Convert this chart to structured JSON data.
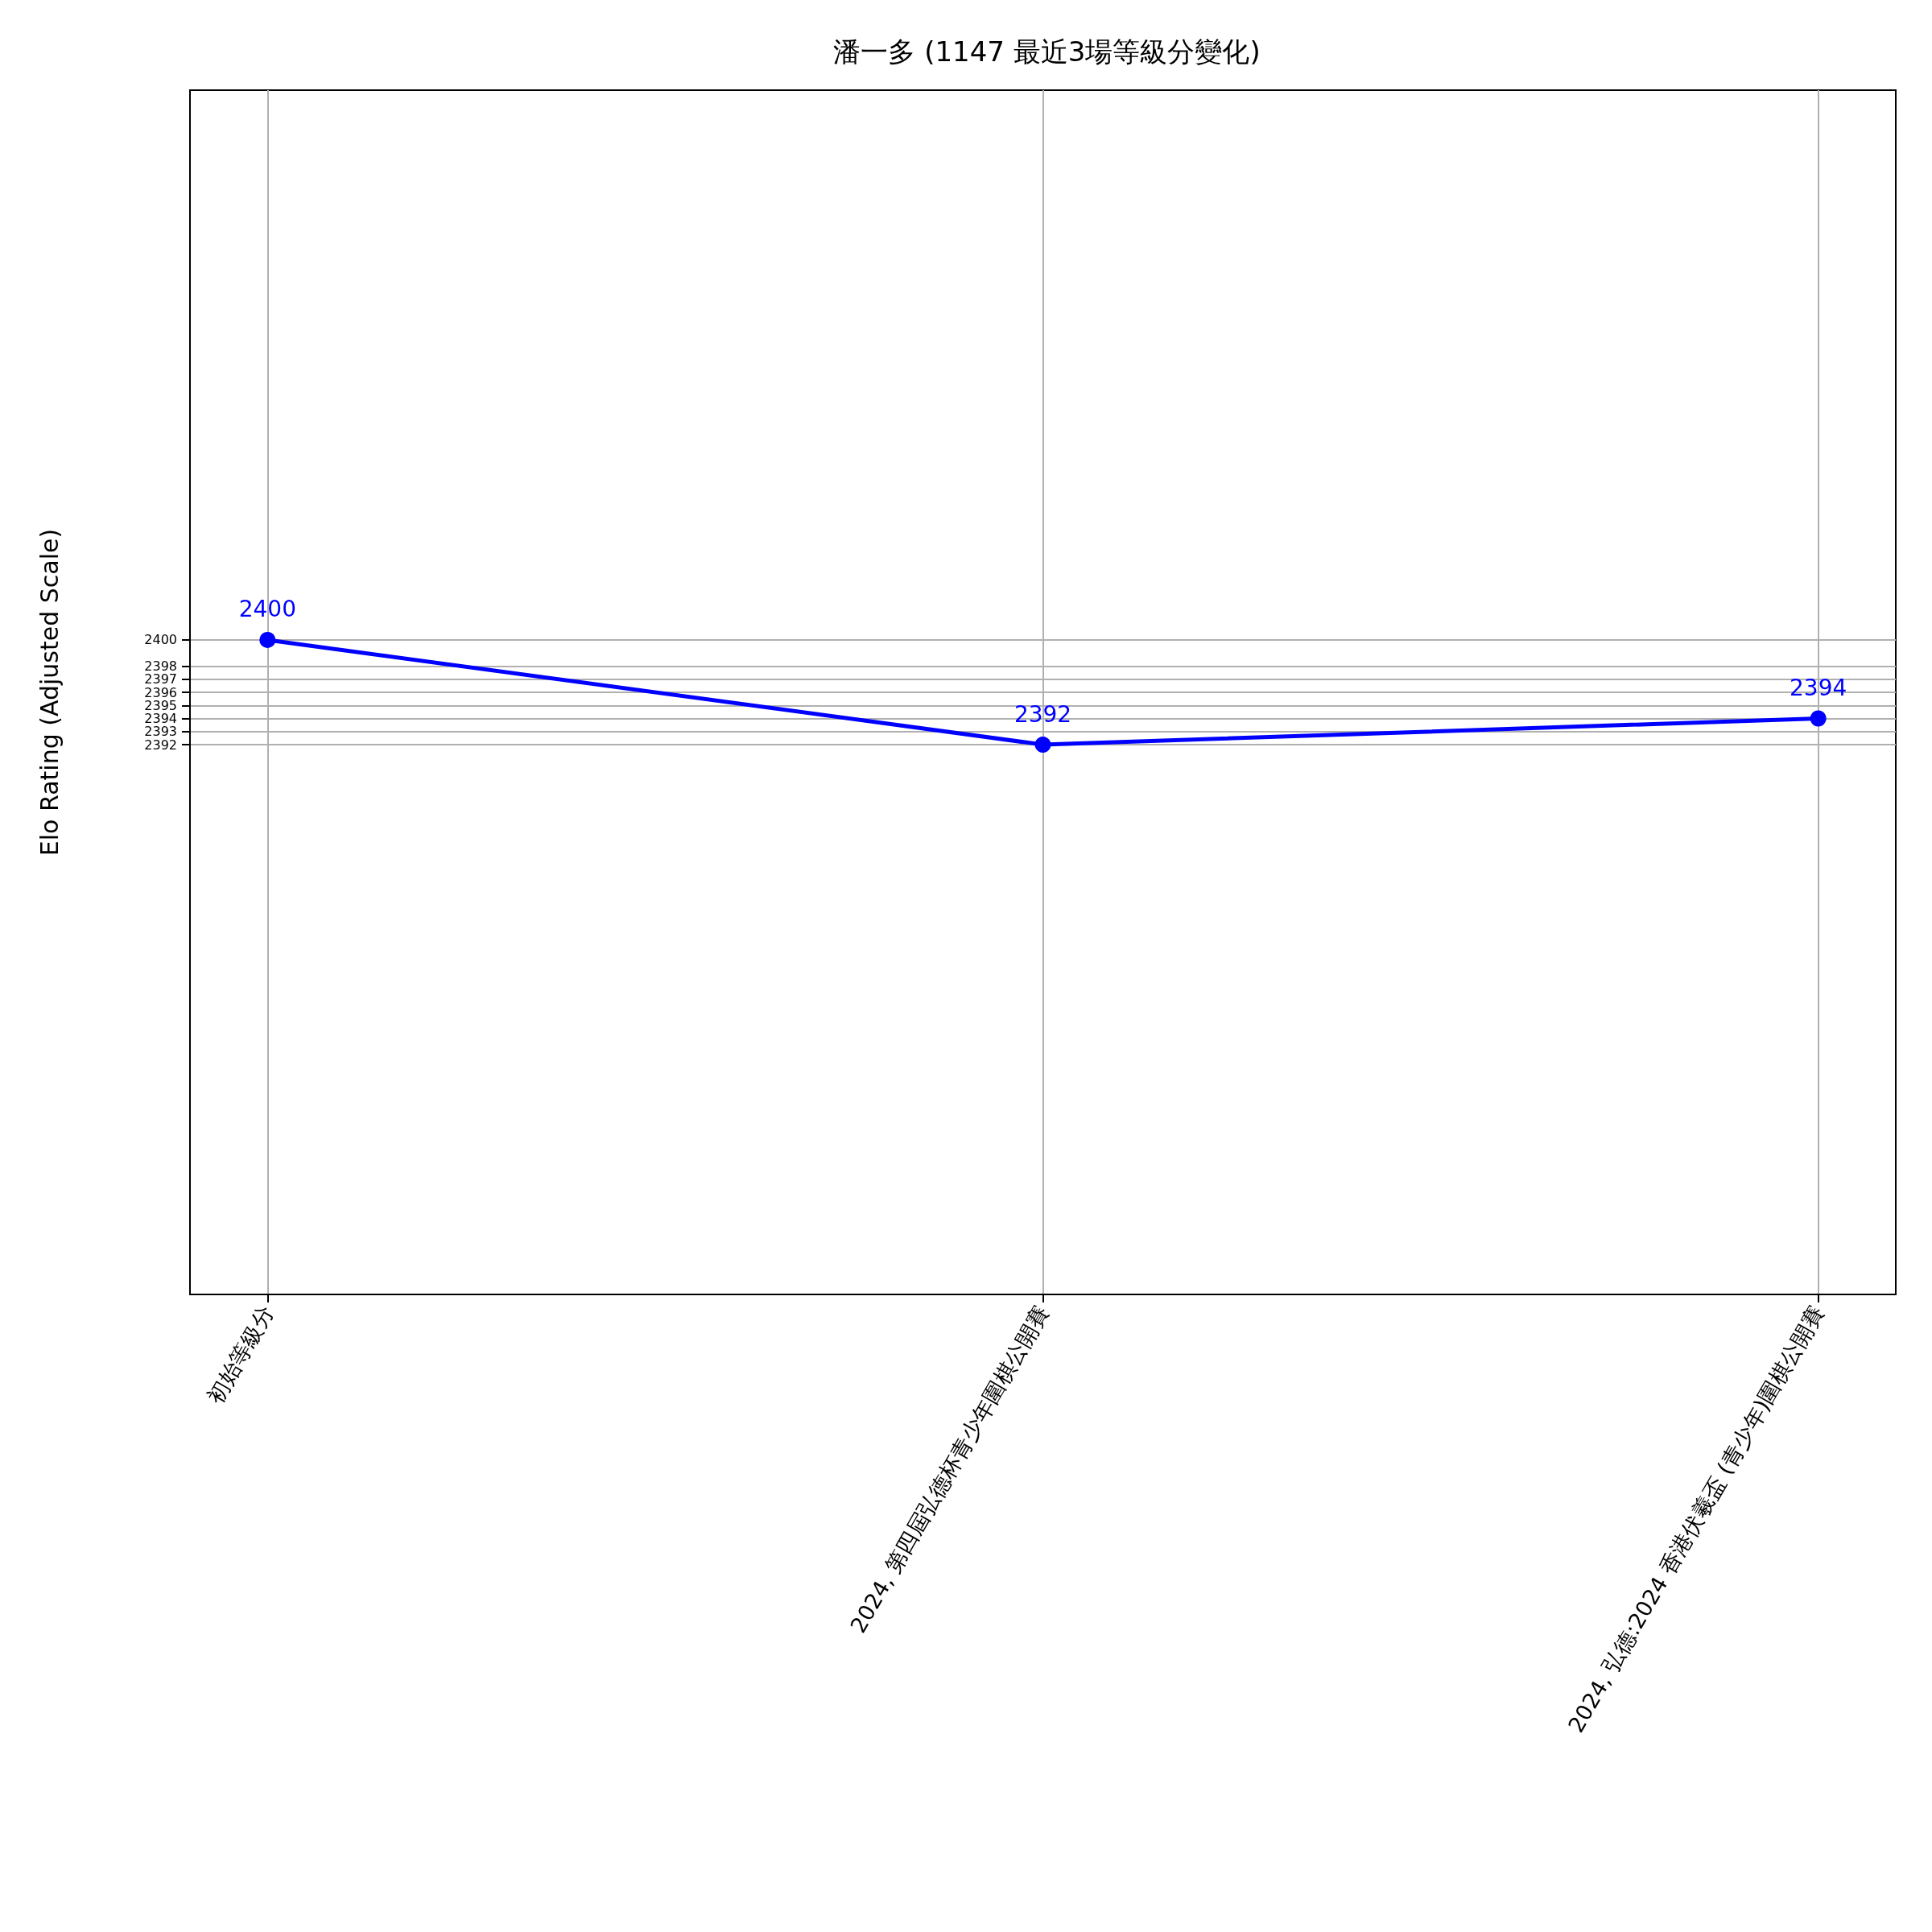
{
  "chart_data": {
    "type": "line",
    "title": "潘一多 (1147 最近3場等級分變化)",
    "ylabel": "Elo Rating (Adjusted Scale)",
    "categories": [
      "初始等級分",
      "2024, 第四屆弘德杯青少年圍棋公開賽",
      "2024, 弘德:2024 香港伏羲盃 (青少年)圍棋公開賽"
    ],
    "series": [
      {
        "color": "#0000ff",
        "values": [
          2400,
          2392,
          2394
        ]
      }
    ],
    "ylim": [
      2350,
      2442
    ],
    "yticks": [
      2392,
      2393,
      2394,
      2395,
      2396,
      2397,
      2398,
      2400
    ],
    "grid": true,
    "marker": "circle",
    "line_style": "solid",
    "data_labels": true
  }
}
